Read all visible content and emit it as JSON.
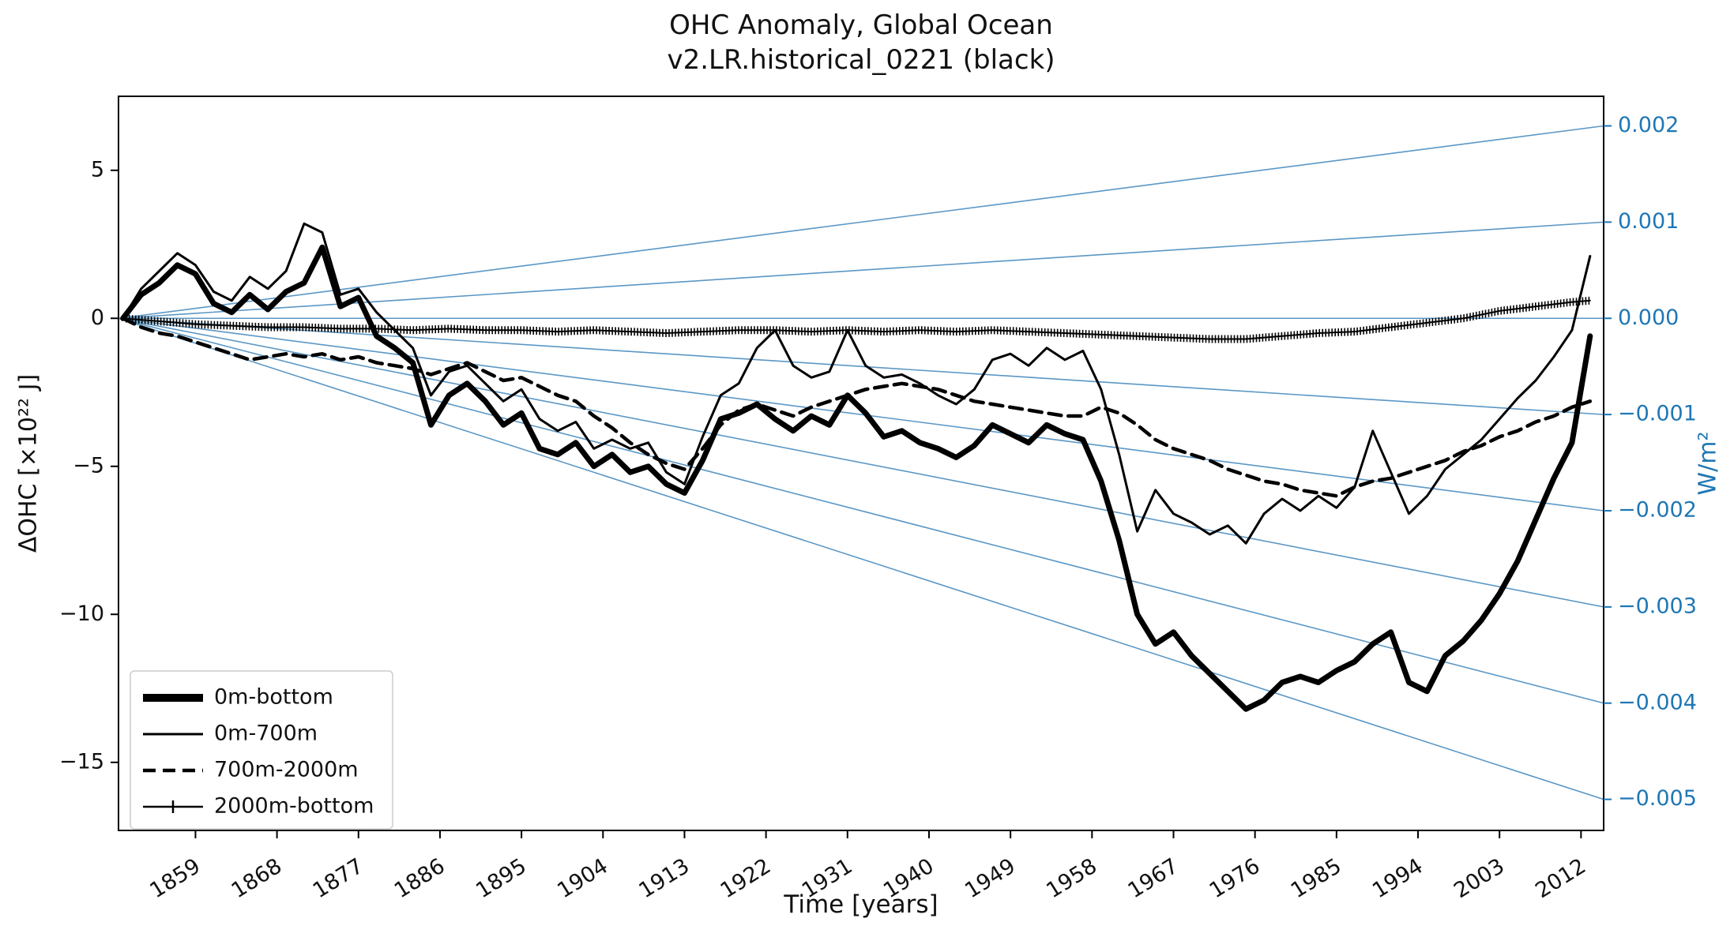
{
  "title": {
    "line1": "OHC Anomaly, Global Ocean",
    "line2": "v2.LR.historical_0221 (black)"
  },
  "axes": {
    "left_label": "ΔOHC [×10²² J]",
    "right_label": "W/m²",
    "bottom_label": "Time [years]",
    "left_ticks": [
      5,
      0,
      -5,
      -10,
      -15
    ],
    "x_ticks": [
      1859,
      1868,
      1877,
      1886,
      1895,
      1904,
      1913,
      1922,
      1931,
      1940,
      1949,
      1958,
      1967,
      1976,
      1985,
      1994,
      2003,
      2012
    ],
    "right_ticks": [
      0.002,
      0.001,
      0.0,
      -0.001,
      -0.002,
      -0.003,
      -0.004,
      -0.005
    ]
  },
  "colors": {
    "series": "#000000",
    "guides": "#5b97c5",
    "right_axis_text": "#1f77b4",
    "spine": "#000000",
    "legend_border": "#cccccc"
  },
  "legend": [
    {
      "label": "0m-bottom",
      "style": "thick"
    },
    {
      "label": "0m-700m",
      "style": "thin"
    },
    {
      "label": "700m-2000m",
      "style": "dashed"
    },
    {
      "label": "2000m-bottom",
      "style": "marker"
    }
  ],
  "chart_data": {
    "type": "line",
    "title": "OHC Anomaly, Global Ocean — v2.LR.historical_0221 (black)",
    "xlabel": "Time [years]",
    "ylabel": "ΔOHC [×10²² J]",
    "ylabel_right": "W/m²",
    "xlim": [
      1850.5,
      2014.5
    ],
    "ylim": [
      -17.3,
      7.5
    ],
    "grid": false,
    "legend_position": "lower left",
    "series": [
      {
        "name": "0m-bottom",
        "style": "thick",
        "x_start": 1851,
        "x_step": 2,
        "y": [
          0,
          0.8,
          1.2,
          1.8,
          1.5,
          0.5,
          0.2,
          0.8,
          0.3,
          0.9,
          1.2,
          2.4,
          0.4,
          0.7,
          -0.6,
          -1,
          -1.5,
          -3.6,
          -2.6,
          -2.2,
          -2.8,
          -3.6,
          -3.2,
          -4.4,
          -4.6,
          -4.2,
          -5,
          -4.6,
          -5.2,
          -5,
          -5.6,
          -5.9,
          -4.8,
          -3.4,
          -3.2,
          -2.9,
          -3.4,
          -3.8,
          -3.3,
          -3.6,
          -2.6,
          -3.2,
          -4,
          -3.8,
          -4.2,
          -4.4,
          -4.7,
          -4.3,
          -3.6,
          -3.9,
          -4.2,
          -3.6,
          -3.9,
          -4.1,
          -5.5,
          -7.5,
          -10,
          -11,
          -10.6,
          -11.4,
          -12,
          -12.6,
          -13.2,
          -12.9,
          -12.3,
          -12.1,
          -12.3,
          -11.9,
          -11.6,
          -11,
          -10.6,
          -12.3,
          -12.6,
          -11.4,
          -10.9,
          -10.2,
          -9.3,
          -8.2,
          -6.8,
          -5.4,
          -4.2,
          -0.6
        ]
      },
      {
        "name": "0m-700m",
        "style": "thin",
        "x_start": 1851,
        "x_step": 2,
        "y": [
          0,
          1,
          1.6,
          2.2,
          1.8,
          0.9,
          0.6,
          1.4,
          1,
          1.6,
          3.2,
          2.9,
          0.8,
          1,
          0.2,
          -0.4,
          -1,
          -2.6,
          -1.8,
          -1.6,
          -2.2,
          -2.8,
          -2.4,
          -3.4,
          -3.8,
          -3.5,
          -4.4,
          -4.1,
          -4.4,
          -4.2,
          -5.2,
          -5.6,
          -4,
          -2.6,
          -2.2,
          -1,
          -0.4,
          -1.6,
          -2,
          -1.8,
          -0.4,
          -1.6,
          -2,
          -1.9,
          -2.2,
          -2.6,
          -2.9,
          -2.4,
          -1.4,
          -1.2,
          -1.6,
          -1,
          -1.4,
          -1.1,
          -2.4,
          -4.6,
          -7.2,
          -5.8,
          -6.6,
          -6.9,
          -7.3,
          -7,
          -7.6,
          -6.6,
          -6.1,
          -6.5,
          -6,
          -6.4,
          -5.7,
          -3.8,
          -5.2,
          -6.6,
          -6,
          -5.1,
          -4.6,
          -4.1,
          -3.4,
          -2.7,
          -2.1,
          -1.3,
          -0.4,
          2.1
        ]
      },
      {
        "name": "700m-2000m",
        "style": "dashed",
        "x_start": 1851,
        "x_step": 2,
        "y": [
          0,
          -0.3,
          -0.5,
          -0.6,
          -0.8,
          -1,
          -1.2,
          -1.4,
          -1.3,
          -1.2,
          -1.3,
          -1.2,
          -1.4,
          -1.3,
          -1.5,
          -1.6,
          -1.7,
          -1.9,
          -1.7,
          -1.5,
          -1.8,
          -2.1,
          -2,
          -2.3,
          -2.6,
          -2.8,
          -3.3,
          -3.7,
          -4.2,
          -4.6,
          -4.9,
          -5.1,
          -4.4,
          -3.6,
          -3.1,
          -2.9,
          -3.1,
          -3.3,
          -3,
          -2.8,
          -2.6,
          -2.4,
          -2.3,
          -2.2,
          -2.3,
          -2.4,
          -2.6,
          -2.8,
          -2.9,
          -3,
          -3.1,
          -3.2,
          -3.3,
          -3.3,
          -3,
          -3.2,
          -3.6,
          -4.1,
          -4.4,
          -4.6,
          -4.8,
          -5.1,
          -5.3,
          -5.5,
          -5.6,
          -5.8,
          -5.9,
          -6,
          -5.7,
          -5.5,
          -5.4,
          -5.2,
          -5,
          -4.8,
          -4.5,
          -4.3,
          -4,
          -3.8,
          -3.5,
          -3.3,
          -3,
          -2.8
        ]
      },
      {
        "name": "2000m-bottom",
        "style": "marker",
        "x": [
          1851,
          1855,
          1859,
          1863,
          1867,
          1871,
          1875,
          1879,
          1883,
          1887,
          1891,
          1895,
          1899,
          1903,
          1907,
          1911,
          1915,
          1919,
          1923,
          1927,
          1931,
          1935,
          1939,
          1943,
          1947,
          1951,
          1955,
          1959,
          1963,
          1967,
          1971,
          1975,
          1979,
          1983,
          1987,
          1991,
          1995,
          1999,
          2003,
          2007,
          2011,
          2013
        ],
        "y": [
          0,
          -0.1,
          -0.2,
          -0.25,
          -0.3,
          -0.3,
          -0.35,
          -0.35,
          -0.4,
          -0.35,
          -0.4,
          -0.4,
          -0.45,
          -0.4,
          -0.45,
          -0.5,
          -0.45,
          -0.4,
          -0.4,
          -0.45,
          -0.4,
          -0.45,
          -0.4,
          -0.45,
          -0.4,
          -0.45,
          -0.5,
          -0.55,
          -0.6,
          -0.65,
          -0.7,
          -0.7,
          -0.6,
          -0.5,
          -0.45,
          -0.3,
          -0.15,
          0,
          0.25,
          0.4,
          0.55,
          0.6
        ]
      }
    ],
    "guide_lines": {
      "description": "Straight heat-flux reference lines fanning from (1850.5, 0) to the right edge; right axis W/m² values map to ΔOHC via scale factor",
      "origin": [
        1850.5,
        0
      ],
      "wm2_values": [
        0.002,
        0.001,
        0.0,
        -0.001,
        -0.002,
        -0.003,
        -0.004,
        -0.005
      ],
      "scale_e22J_per_wm2": 3250
    }
  }
}
